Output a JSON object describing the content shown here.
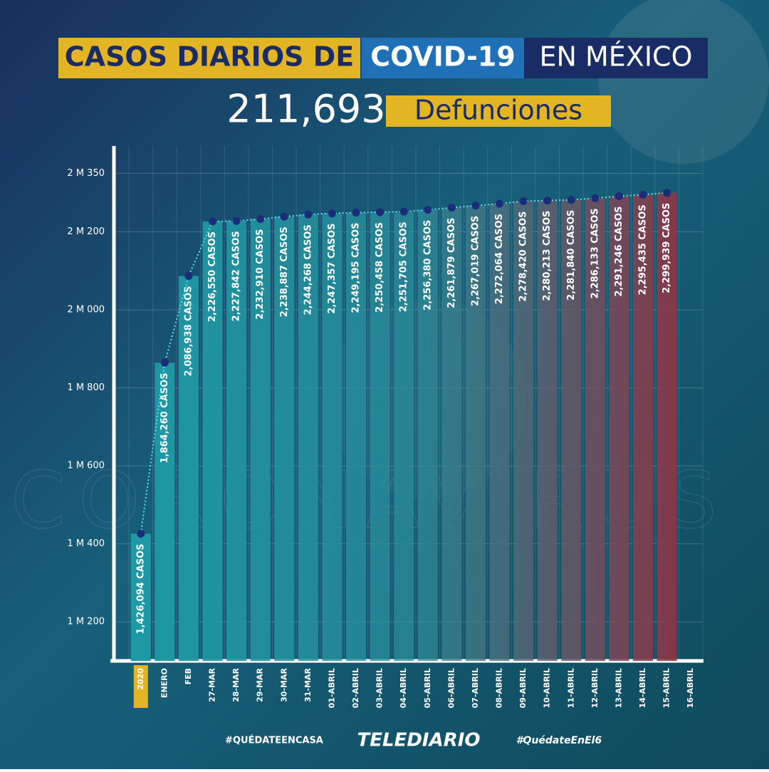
{
  "title_part1": "CASOS DIARIOS DE",
  "title_part2": "COVID-19",
  "title_part3": "EN MÉXICO",
  "deaths": "211,693",
  "deaths_label": "Defunciones",
  "background_text": "CORONAVIRUS",
  "footer": {
    "left": "#QUÉDATEENCASA",
    "center": "TELEDIARIO",
    "right": "#QuédateEnEl6"
  },
  "chart_data": {
    "type": "bar",
    "categories": [
      "2020",
      "ENERO",
      "FEB",
      "27-MAR",
      "28-MAR",
      "29-MAR",
      "30-MAR",
      "31-MAR",
      "01-ABRIL",
      "02-ABRIL",
      "03-ABRIL",
      "04-ABRIL",
      "05-ABRIL",
      "06-ABRIL",
      "07-ABRIL",
      "08-ABRIL",
      "09-ABRIL",
      "10-ABRIL",
      "11-ABRIL",
      "12-ABRIL",
      "13-ABRIL",
      "14-ABRIL",
      "15-ABRIL",
      "16-ABRIL"
    ],
    "values": [
      1426094,
      1864260,
      2086938,
      2226550,
      2227842,
      2232910,
      2238887,
      2244268,
      2247357,
      2249195,
      2250458,
      2251705,
      2256380,
      2261879,
      2267019,
      2272064,
      2278420,
      2280213,
      2281840,
      2286133,
      2291246,
      2295435,
      2299939,
      null
    ],
    "value_labels": [
      "1,426,094 CASOS",
      "1,864,260 CASOS",
      "2,086,938 CASOS",
      "2,226,550 CASOS",
      "2,227,842 CASOS",
      "2,232,910 CASOS",
      "2,238,887 CASOS",
      "2,244,268 CASOS",
      "2,247,357 CASOS",
      "2,249,195 CASOS",
      "2,250,458 CASOS",
      "2,251,705 CASOS",
      "2,256,380 CASOS",
      "2,261,879 CASOS",
      "2,267,019 CASOS",
      "2,272,064 CASOS",
      "2,278,420 CASOS",
      "2,280,213 CASOS",
      "2,281,840 CASOS",
      "2,286,133 CASOS",
      "2,291,246 CASOS",
      "2,295,435 CASOS",
      "2,299,939 CASOS",
      null
    ],
    "color": "#1d9aa6",
    "ylim": [
      1100000,
      2420000
    ],
    "yticks": [
      {
        "value": 1200000,
        "label": "1 M 200"
      },
      {
        "value": 1400000,
        "label": "1 M 400"
      },
      {
        "value": 1600000,
        "label": "1 M 600"
      },
      {
        "value": 1800000,
        "label": "1 M 800"
      },
      {
        "value": 2000000,
        "label": "2 M 000"
      },
      {
        "value": 2200000,
        "label": "2 M 200"
      },
      {
        "value": 2350000,
        "label": "2 M 350"
      }
    ],
    "grid": true
  }
}
